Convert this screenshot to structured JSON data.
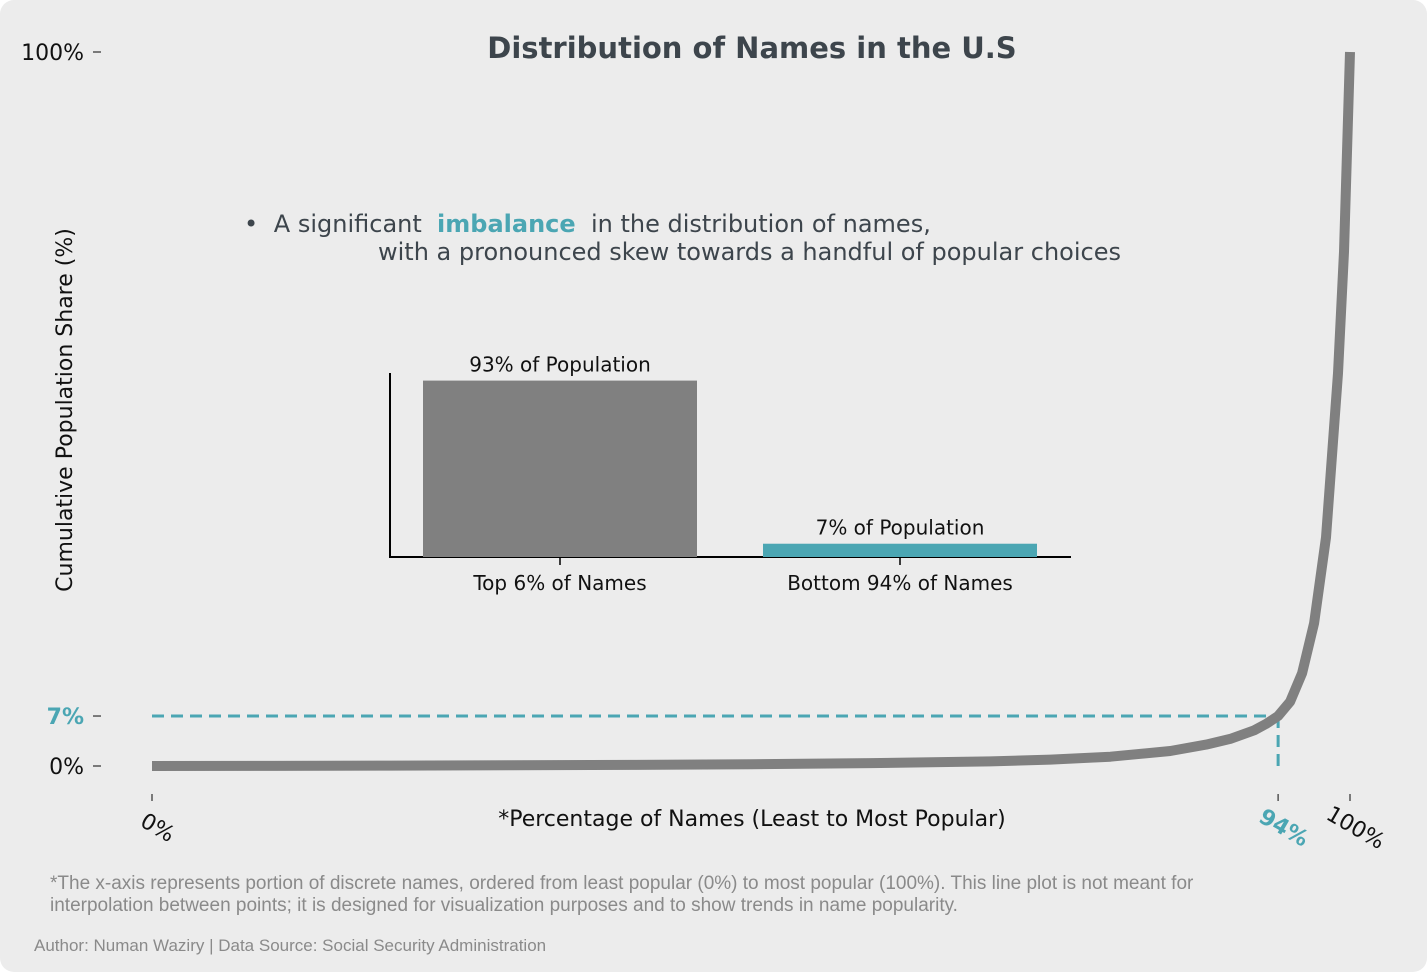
{
  "chart_data": [
    {
      "type": "line",
      "title": "Distribution of Names in the U.S",
      "xlabel": "*Percentage of Names (Least to Most Popular)",
      "ylabel": "Cumulative Population Share (%)",
      "xlim": [
        0,
        100
      ],
      "ylim": [
        0,
        100
      ],
      "x_ticks": [
        {
          "value": 0,
          "label": "0%",
          "highlight": false
        },
        {
          "value": 94,
          "label": "94%",
          "highlight": true
        },
        {
          "value": 100,
          "label": "100%",
          "highlight": false
        }
      ],
      "y_ticks": [
        {
          "value": 0,
          "label": "0%",
          "highlight": false
        },
        {
          "value": 7,
          "label": "7%",
          "highlight": true
        },
        {
          "value": 100,
          "label": "100%",
          "highlight": false
        }
      ],
      "series": [
        {
          "color": "#808080",
          "x": [
            0,
            10,
            20,
            30,
            40,
            50,
            60,
            70,
            75,
            80,
            85,
            88,
            90,
            92,
            93,
            94,
            95,
            96,
            97,
            98,
            99,
            99.5,
            100
          ],
          "y": [
            0,
            0.02,
            0.05,
            0.1,
            0.16,
            0.25,
            0.4,
            0.65,
            0.9,
            1.3,
            2.1,
            3.0,
            3.8,
            5.0,
            5.9,
            7.0,
            9.0,
            13.0,
            20.0,
            32.0,
            55.0,
            72.0,
            100
          ]
        }
      ],
      "reference_point": {
        "x": 94,
        "y": 7,
        "color": "#4ba6b3"
      },
      "grid": false
    },
    {
      "type": "bar",
      "categories": [
        "Top 6% of Names",
        "Bottom 94% of Names"
      ],
      "values": [
        93,
        7
      ],
      "data_labels": [
        "93% of Population",
        "7% of Population"
      ],
      "colors": [
        "#808080",
        "#4ba6b3"
      ],
      "ylim": [
        0,
        97
      ]
    }
  ],
  "annotation": {
    "bullet": "•",
    "prefix": "A significant ",
    "highlight": "imbalance",
    "suffix": " in the distribution of names,",
    "line2": "with a pronounced skew towards a handful of popular choices",
    "highlight_color": "#4ba6b3"
  },
  "footnote": {
    "line1": "*The x-axis represents portion of discrete names, ordered from least popular (0%) to most popular (100%). This line plot is not meant for",
    "line2": "interpolation between points; it is designed for visualization purposes and to show trends in name popularity."
  },
  "credit": "Author: Numan Waziry | Data Source: Social Security Administration",
  "colors": {
    "background": "#ececec",
    "title": "#3d454c",
    "accent": "#4ba6b3",
    "line": "#808080",
    "footnote": "#8a8a8a"
  }
}
